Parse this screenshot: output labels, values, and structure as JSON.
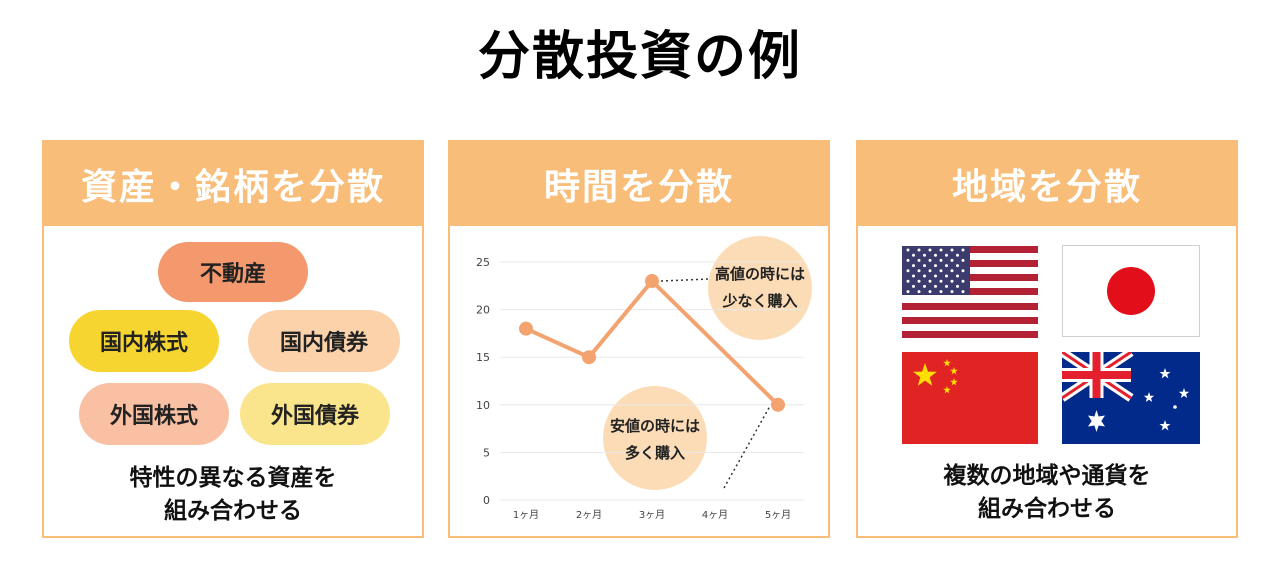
{
  "title": "分散投資の例",
  "cards": [
    {
      "header": "資産・銘柄を分散",
      "assets": [
        "不動産",
        "国内株式",
        "国内債券",
        "外国株式",
        "外国債券"
      ],
      "caption_line1": "特性の異なる資産を",
      "caption_line2": "組み合わせる"
    },
    {
      "header": "時間を分散",
      "note_high_line1": "高値の時には",
      "note_high_line2": "少なく購入",
      "note_low_line1": "安値の時には",
      "note_low_line2": "多く購入"
    },
    {
      "header": "地域を分散",
      "flags": [
        "us-flag",
        "japan-flag",
        "china-flag",
        "australia-flag"
      ],
      "caption_line1": "複数の地域や通貨を",
      "caption_line2": "組み合わせる"
    }
  ],
  "colors": {
    "header": "#f8bd78",
    "real_estate": "#f3996d",
    "domestic_stock": "#f7d531",
    "domestic_bond": "#fbd2aa",
    "foreign_stock": "#f9c0a3",
    "foreign_bond": "#fbe58c",
    "line": "#f3a36f",
    "note": "#fbdcb7"
  },
  "chart_data": {
    "type": "line",
    "categories": [
      "1ヶ月",
      "2ヶ月",
      "3ヶ月",
      "4ヶ月",
      "5ヶ月"
    ],
    "x": [
      1,
      2,
      3,
      5
    ],
    "values": [
      18,
      15,
      23,
      10
    ],
    "yticks": [
      0,
      5,
      10,
      15,
      20,
      25
    ],
    "ylim": [
      0,
      25
    ],
    "grid": true
  }
}
